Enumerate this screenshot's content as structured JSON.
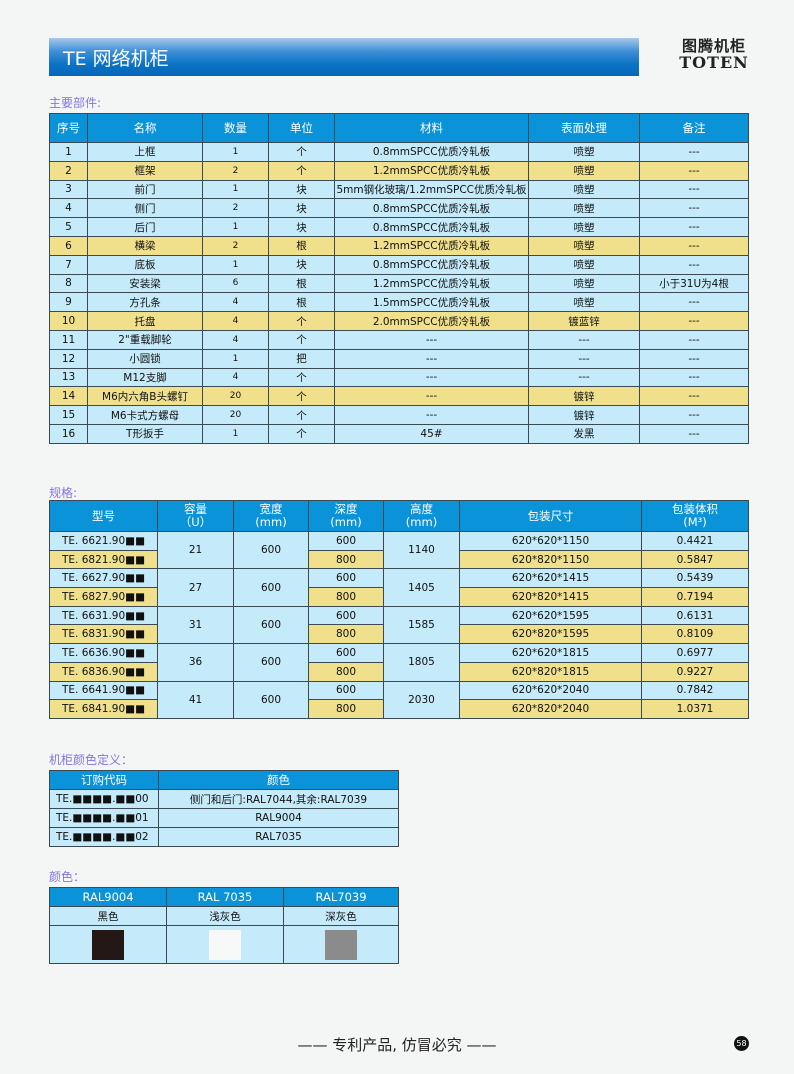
{
  "header": {
    "title": "TE 网络机柜",
    "logo_cn": "图腾机柜",
    "logo_en": "TOTEN"
  },
  "parts": {
    "label": "主要部件:",
    "columns": [
      "序号",
      "名称",
      "数量",
      "单位",
      "材料",
      "表面处理",
      "备注"
    ],
    "rows": [
      [
        "1",
        "上框",
        "1",
        "个",
        "0.8mmSPCC优质冷轧板",
        "喷塑",
        "---"
      ],
      [
        "2",
        "框架",
        "2",
        "个",
        "1.2mmSPCC优质冷轧板",
        "喷塑",
        "---"
      ],
      [
        "3",
        "前门",
        "1",
        "块",
        "5mm钢化玻璃/1.2mmSPCC优质冷轧板",
        "喷塑",
        "---"
      ],
      [
        "4",
        "侧门",
        "2",
        "块",
        "0.8mmSPCC优质冷轧板",
        "喷塑",
        "---"
      ],
      [
        "5",
        "后门",
        "1",
        "块",
        "0.8mmSPCC优质冷轧板",
        "喷塑",
        "---"
      ],
      [
        "6",
        "横梁",
        "2",
        "根",
        "1.2mmSPCC优质冷轧板",
        "喷塑",
        "---"
      ],
      [
        "7",
        "底板",
        "1",
        "块",
        "0.8mmSPCC优质冷轧板",
        "喷塑",
        "---"
      ],
      [
        "8",
        "安装梁",
        "6",
        "根",
        "1.2mmSPCC优质冷轧板",
        "喷塑",
        "小于31U为4根"
      ],
      [
        "9",
        "方孔条",
        "4",
        "根",
        "1.5mmSPCC优质冷轧板",
        "喷塑",
        "---"
      ],
      [
        "10",
        "托盘",
        "4",
        "个",
        "2.0mmSPCC优质冷轧板",
        "镀蓝锌",
        "---"
      ],
      [
        "11",
        "2\"重载脚轮",
        "4",
        "个",
        "---",
        "---",
        "---"
      ],
      [
        "12",
        "小圆锁",
        "1",
        "把",
        "---",
        "---",
        "---"
      ],
      [
        "13",
        "M12支脚",
        "4",
        "个",
        "---",
        "---",
        "---"
      ],
      [
        "14",
        "M6内六角B头螺钉",
        "20",
        "个",
        "---",
        "镀锌",
        "---"
      ],
      [
        "15",
        "M6卡式方螺母",
        "20",
        "个",
        "---",
        "镀锌",
        "---"
      ],
      [
        "16",
        "T形扳手",
        "1",
        "个",
        "45#",
        "发黑",
        "---"
      ]
    ],
    "highlight_rows": [
      2,
      6,
      10,
      14
    ]
  },
  "spec": {
    "label": "规格:",
    "columns": [
      "型号",
      "容量\n（U）",
      "宽度\n(mm)",
      "深度\n(mm)",
      "高度\n(mm)",
      "包装尺寸",
      "包装体积\n(M³)"
    ],
    "groups": [
      {
        "capacity": "21",
        "width": "600",
        "height": "1140",
        "rows": [
          {
            "model": "TE. 6621.90■■",
            "depth": "600",
            "pack": "620*620*1150",
            "vol": "0.4421"
          },
          {
            "model": "TE. 6821.90■■",
            "depth": "800",
            "pack": "620*820*1150",
            "vol": "0.5847"
          }
        ]
      },
      {
        "capacity": "27",
        "width": "600",
        "height": "1405",
        "rows": [
          {
            "model": "TE. 6627.90■■",
            "depth": "600",
            "pack": "620*620*1415",
            "vol": "0.5439"
          },
          {
            "model": "TE. 6827.90■■",
            "depth": "800",
            "pack": "620*820*1415",
            "vol": "0.7194"
          }
        ]
      },
      {
        "capacity": "31",
        "width": "600",
        "height": "1585",
        "rows": [
          {
            "model": "TE. 6631.90■■",
            "depth": "600",
            "pack": "620*620*1595",
            "vol": "0.6131"
          },
          {
            "model": "TE. 6831.90■■",
            "depth": "800",
            "pack": "620*820*1595",
            "vol": "0.8109"
          }
        ]
      },
      {
        "capacity": "36",
        "width": "600",
        "height": "1805",
        "rows": [
          {
            "model": "TE. 6636.90■■",
            "depth": "600",
            "pack": "620*620*1815",
            "vol": "0.6977"
          },
          {
            "model": "TE. 6836.90■■",
            "depth": "800",
            "pack": "620*820*1815",
            "vol": "0.9227"
          }
        ]
      },
      {
        "capacity": "41",
        "width": "600",
        "height": "2030",
        "rows": [
          {
            "model": "TE. 6641.90■■",
            "depth": "600",
            "pack": "620*620*2040",
            "vol": "0.7842"
          },
          {
            "model": "TE. 6841.90■■",
            "depth": "800",
            "pack": "620*820*2040",
            "vol": "1.0371"
          }
        ]
      }
    ]
  },
  "colordef": {
    "label": "机柜颜色定义：",
    "columns": [
      "订购代码",
      "颜色"
    ],
    "rows": [
      [
        "TE.■■■■.■■00",
        "侧门和后门:RAL7044,其余:RAL7039"
      ],
      [
        "TE.■■■■.■■01",
        "RAL9004"
      ],
      [
        "TE.■■■■.■■02",
        "RAL7035"
      ]
    ]
  },
  "colors": {
    "label": "颜色：",
    "items": [
      {
        "code": "RAL9004",
        "name": "黑色",
        "hex": "#231815"
      },
      {
        "code": "RAL 7035",
        "name": "浅灰色",
        "hex": "#f7f8f8"
      },
      {
        "code": "RAL7039",
        "name": "深灰色",
        "hex": "#8b8b8b"
      }
    ]
  },
  "footer": {
    "text": "—— 专利产品, 仿冒必究 ——",
    "page": "58"
  },
  "theme": {
    "header_blue": "#0a93d8",
    "row_blue": "#c5eaf9",
    "row_yellow": "#f0e08c",
    "label_purple": "#8474e0"
  }
}
